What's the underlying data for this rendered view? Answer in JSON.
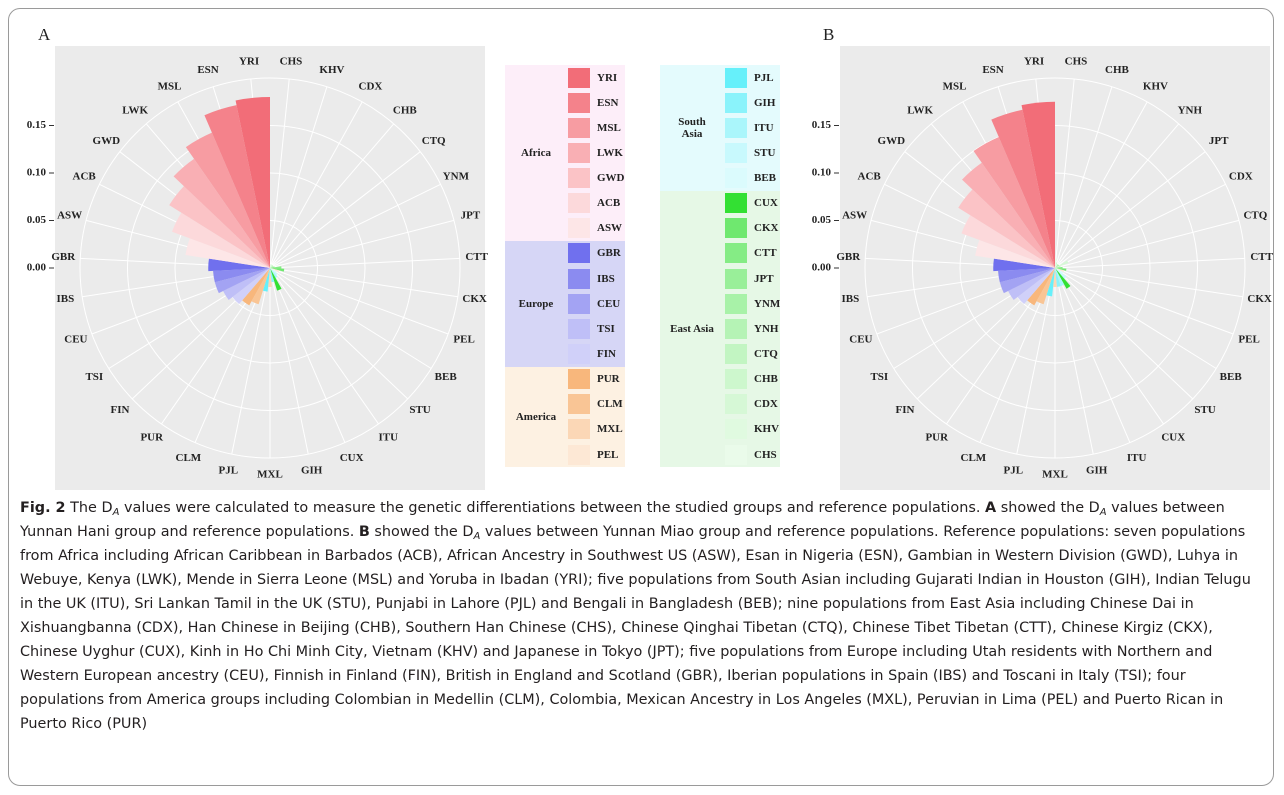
{
  "chart_data": [
    {
      "type": "polar-bar",
      "title": "A",
      "categories": [
        "CHS",
        "KHV",
        "CDX",
        "CHB",
        "CTQ",
        "YNM",
        "JPT",
        "CTT",
        "CKX",
        "PEL",
        "BEB",
        "STU",
        "ITU",
        "CUX",
        "GIH",
        "MXL",
        "PJL",
        "CLM",
        "PUR",
        "FIN",
        "TSI",
        "CEU",
        "IBS",
        "GBR",
        "ASW",
        "ACB",
        "GWD",
        "LWK",
        "MSL",
        "ESN",
        "YRI"
      ],
      "values": [
        0.004,
        0.004,
        0.004,
        0.004,
        0.004,
        0.004,
        0.005,
        0.012,
        0.015,
        0.01,
        0.008,
        0.01,
        0.012,
        0.025,
        0.015,
        0.02,
        0.025,
        0.04,
        0.045,
        0.05,
        0.055,
        0.06,
        0.06,
        0.065,
        0.09,
        0.11,
        0.125,
        0.14,
        0.155,
        0.175,
        0.18
      ],
      "ylim": [
        0,
        0.2
      ],
      "yticks": [
        {
          "value": 0,
          "label": "0.00"
        },
        {
          "value": 0.05,
          "label": "0.05"
        },
        {
          "value": 0.1,
          "label": "0.10"
        },
        {
          "value": 0.15,
          "label": "0.15"
        }
      ],
      "grid": true
    },
    {
      "type": "polar-bar",
      "title": "B",
      "categories": [
        "CHS",
        "CHB",
        "KHV",
        "YNH",
        "JPT",
        "CDX",
        "CTQ",
        "CTT",
        "CKX",
        "PEL",
        "BEB",
        "STU",
        "CUX",
        "ITU",
        "GIH",
        "MXL",
        "PJL",
        "CLM",
        "PUR",
        "FIN",
        "TSI",
        "CEU",
        "IBS",
        "GBR",
        "ASW",
        "ACB",
        "GWD",
        "LWK",
        "MSL",
        "ESN",
        "YRI"
      ],
      "values": [
        0.01,
        0.006,
        0.005,
        0.005,
        0.005,
        0.015,
        0.006,
        0.008,
        0.012,
        0.01,
        0.01,
        0.015,
        0.025,
        0.02,
        0.02,
        0.02,
        0.03,
        0.04,
        0.045,
        0.05,
        0.055,
        0.06,
        0.06,
        0.065,
        0.085,
        0.105,
        0.12,
        0.135,
        0.15,
        0.17,
        0.175
      ],
      "ylim": [
        0,
        0.2
      ],
      "yticks": [
        {
          "value": 0,
          "label": "0.00"
        },
        {
          "value": 0.05,
          "label": "0.05"
        },
        {
          "value": 0.1,
          "label": "0.10"
        },
        {
          "value": 0.15,
          "label": "0.15"
        }
      ],
      "grid": true
    }
  ],
  "legend": {
    "columns": [
      [
        {
          "name": "Africa",
          "background": "#fdeef9",
          "items": [
            {
              "name": "YRI",
              "color": "#f26d78"
            },
            {
              "name": "ESN",
              "color": "#f4828b"
            },
            {
              "name": "MSL",
              "color": "#f79ca2"
            },
            {
              "name": "LWK",
              "color": "#f9afb4"
            },
            {
              "name": "GWD",
              "color": "#fbc3c6"
            },
            {
              "name": "ACB",
              "color": "#fcd9db"
            },
            {
              "name": "ASW",
              "color": "#fde6e7"
            }
          ]
        },
        {
          "name": "Europe",
          "background": "#d6d6f6",
          "items": [
            {
              "name": "GBR",
              "color": "#7070ee"
            },
            {
              "name": "IBS",
              "color": "#8b8bf0"
            },
            {
              "name": "CEU",
              "color": "#a3a3f3"
            },
            {
              "name": "TSI",
              "color": "#bfbff7"
            },
            {
              "name": "FIN",
              "color": "#d0d0f9"
            }
          ]
        },
        {
          "name": "America",
          "background": "#fdf1e2",
          "items": [
            {
              "name": "PUR",
              "color": "#f8b77c"
            },
            {
              "name": "CLM",
              "color": "#f9c595"
            },
            {
              "name": "MXL",
              "color": "#fbd7b6"
            },
            {
              "name": "PEL",
              "color": "#fde8d5"
            }
          ]
        }
      ],
      [
        {
          "name": "South Asia",
          "background": "#e4fbfd",
          "items": [
            {
              "name": "PJL",
              "color": "#66f0fa"
            },
            {
              "name": "GIH",
              "color": "#8af3fb"
            },
            {
              "name": "ITU",
              "color": "#aaf6fb"
            },
            {
              "name": "STU",
              "color": "#c8f9fd"
            },
            {
              "name": "BEB",
              "color": "#dbfbfd"
            }
          ]
        },
        {
          "name": "East Asia",
          "background": "#e6f8e6",
          "items": [
            {
              "name": "CUX",
              "color": "#33e033"
            },
            {
              "name": "CKX",
              "color": "#6fe86f"
            },
            {
              "name": "CTT",
              "color": "#85ec85"
            },
            {
              "name": "JPT",
              "color": "#99ef99"
            },
            {
              "name": "YNM",
              "color": "#a8f2a8"
            },
            {
              "name": "YNH",
              "color": "#b5f3b5"
            },
            {
              "name": "CTQ",
              "color": "#c2f5c2"
            },
            {
              "name": "CHB",
              "color": "#cdf7cd"
            },
            {
              "name": "CDX",
              "color": "#d6f8d6"
            },
            {
              "name": "KHV",
              "color": "#e0fae0"
            },
            {
              "name": "CHS",
              "color": "#eafbea"
            }
          ]
        }
      ]
    ]
  },
  "caption": {
    "runs": [
      {
        "text": "Fig. 2",
        "style": "bold"
      },
      {
        "text": " The D"
      },
      {
        "text": "A",
        "style": "sub"
      },
      {
        "text": " values were calculated to measure the genetic differentiations between the studied groups and reference populations. "
      },
      {
        "text": "A",
        "style": "bold"
      },
      {
        "text": " showed the D"
      },
      {
        "text": "A",
        "style": "sub"
      },
      {
        "text": " values between Yunnan Hani group and reference populations. "
      },
      {
        "text": "B",
        "style": "bold"
      },
      {
        "text": " showed the D"
      },
      {
        "text": "A",
        "style": "sub"
      },
      {
        "text": " values between Yunnan Miao group and reference populations. Reference populations: seven populations from Africa including African Caribbean in Barbados (ACB), African Ancestry in Southwest US (ASW), Esan in Nigeria (ESN), Gambian in Western Division (GWD), Luhya in Webuye, Kenya (LWK), Mende in Sierra Leone (MSL) and Yoruba in Ibadan (YRI); five populations from South Asian including Gujarati Indian in Houston (GIH), Indian Telugu in the UK (ITU), Sri Lankan Tamil in the UK (STU), Punjabi in Lahore (PJL) and Bengali in Bangladesh (BEB); nine populations from East Asia including Chinese Dai in Xishuangbanna (CDX), Han Chinese in Beijing (CHB), Southern Han Chinese (CHS), Chinese Qinghai Tibetan (CTQ), Chinese Tibet Tibetan (CTT), Chinese Kirgiz (CKX), Chinese Uyghur (CUX), Kinh in Ho Chi Minh City, Vietnam (KHV) and Japanese in Tokyo (JPT); five populations from Europe including Utah residents with Northern and Western European ancestry (CEU), Finnish in Finland (FIN), British in England and Scotland (GBR), Iberian populations in Spain (IBS) and Toscani in Italy (TSI); four populations from America groups including Colombian in Medellin (CLM), Colombia, Mexican Ancestry in Los Angeles (MXL), Peruvian in Lima (PEL) and Puerto Rican in Puerto Rico (PUR)"
      }
    ]
  }
}
